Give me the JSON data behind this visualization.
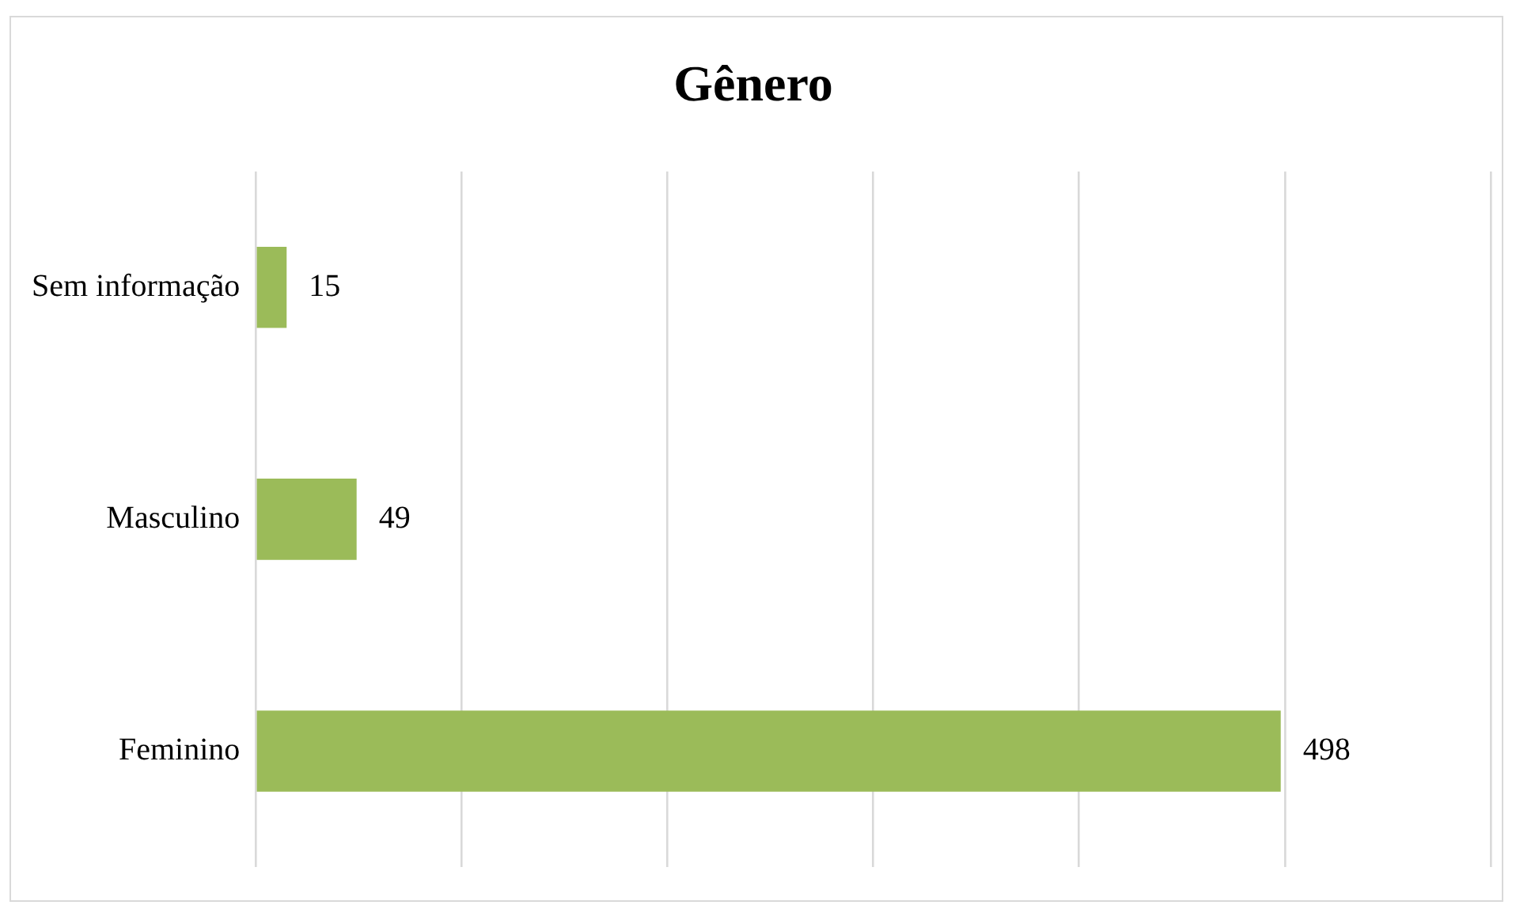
{
  "chart_data": {
    "type": "bar",
    "orientation": "horizontal",
    "title": "Gênero",
    "categories": [
      "Sem informação",
      "Masculino",
      "Feminino"
    ],
    "values": [
      15,
      49,
      498
    ],
    "color": "#9bbb59",
    "xlim": [
      0,
      600
    ],
    "xticks": [
      {
        "value": 0,
        "label": null
      },
      {
        "value": 100,
        "label": null
      },
      {
        "value": 200,
        "label": null
      },
      {
        "value": 300,
        "label": null
      },
      {
        "value": 400,
        "label": null
      },
      {
        "value": 500,
        "label": null
      },
      {
        "value": 600,
        "label": null
      }
    ],
    "grid": "x",
    "tick_labels": "y",
    "data_labels": true,
    "legend": false
  }
}
